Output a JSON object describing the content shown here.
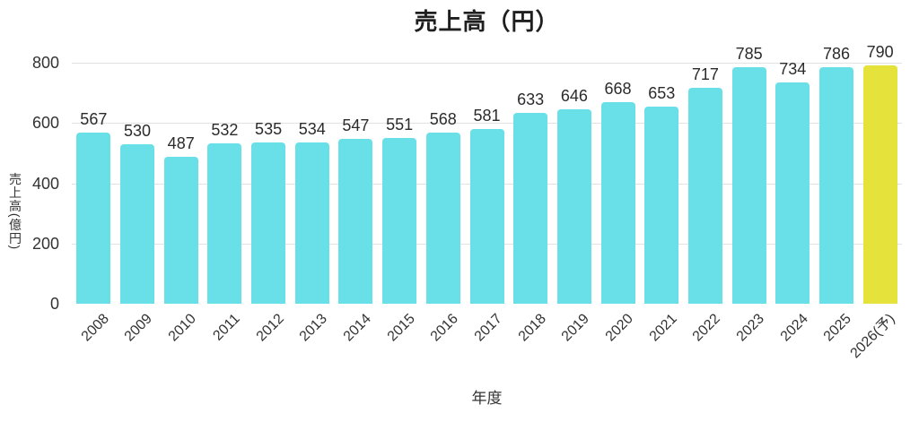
{
  "chart_data": {
    "type": "bar",
    "title": "売上高（円）",
    "xlabel": "年度",
    "ylabel": "売上高(億円)",
    "categories": [
      "2008",
      "2009",
      "2010",
      "2011",
      "2012",
      "2013",
      "2014",
      "2015",
      "2016",
      "2017",
      "2018",
      "2019",
      "2020",
      "2021",
      "2022",
      "2023",
      "2024",
      "2025",
      "2026(予)"
    ],
    "values": [
      567,
      530,
      487,
      532,
      535,
      534,
      547,
      551,
      568,
      581,
      633,
      646,
      668,
      653,
      717,
      785,
      734,
      786,
      790
    ],
    "yticks": [
      0,
      200,
      400,
      600,
      800
    ],
    "ylim": [
      0,
      800
    ],
    "grid": true,
    "legend": "none",
    "bar_color": "#69e0e7",
    "highlight_color": "#e5e23c",
    "highlight_index": 18,
    "gridline_color": "#e2e2e2",
    "text_color": "#333333"
  }
}
